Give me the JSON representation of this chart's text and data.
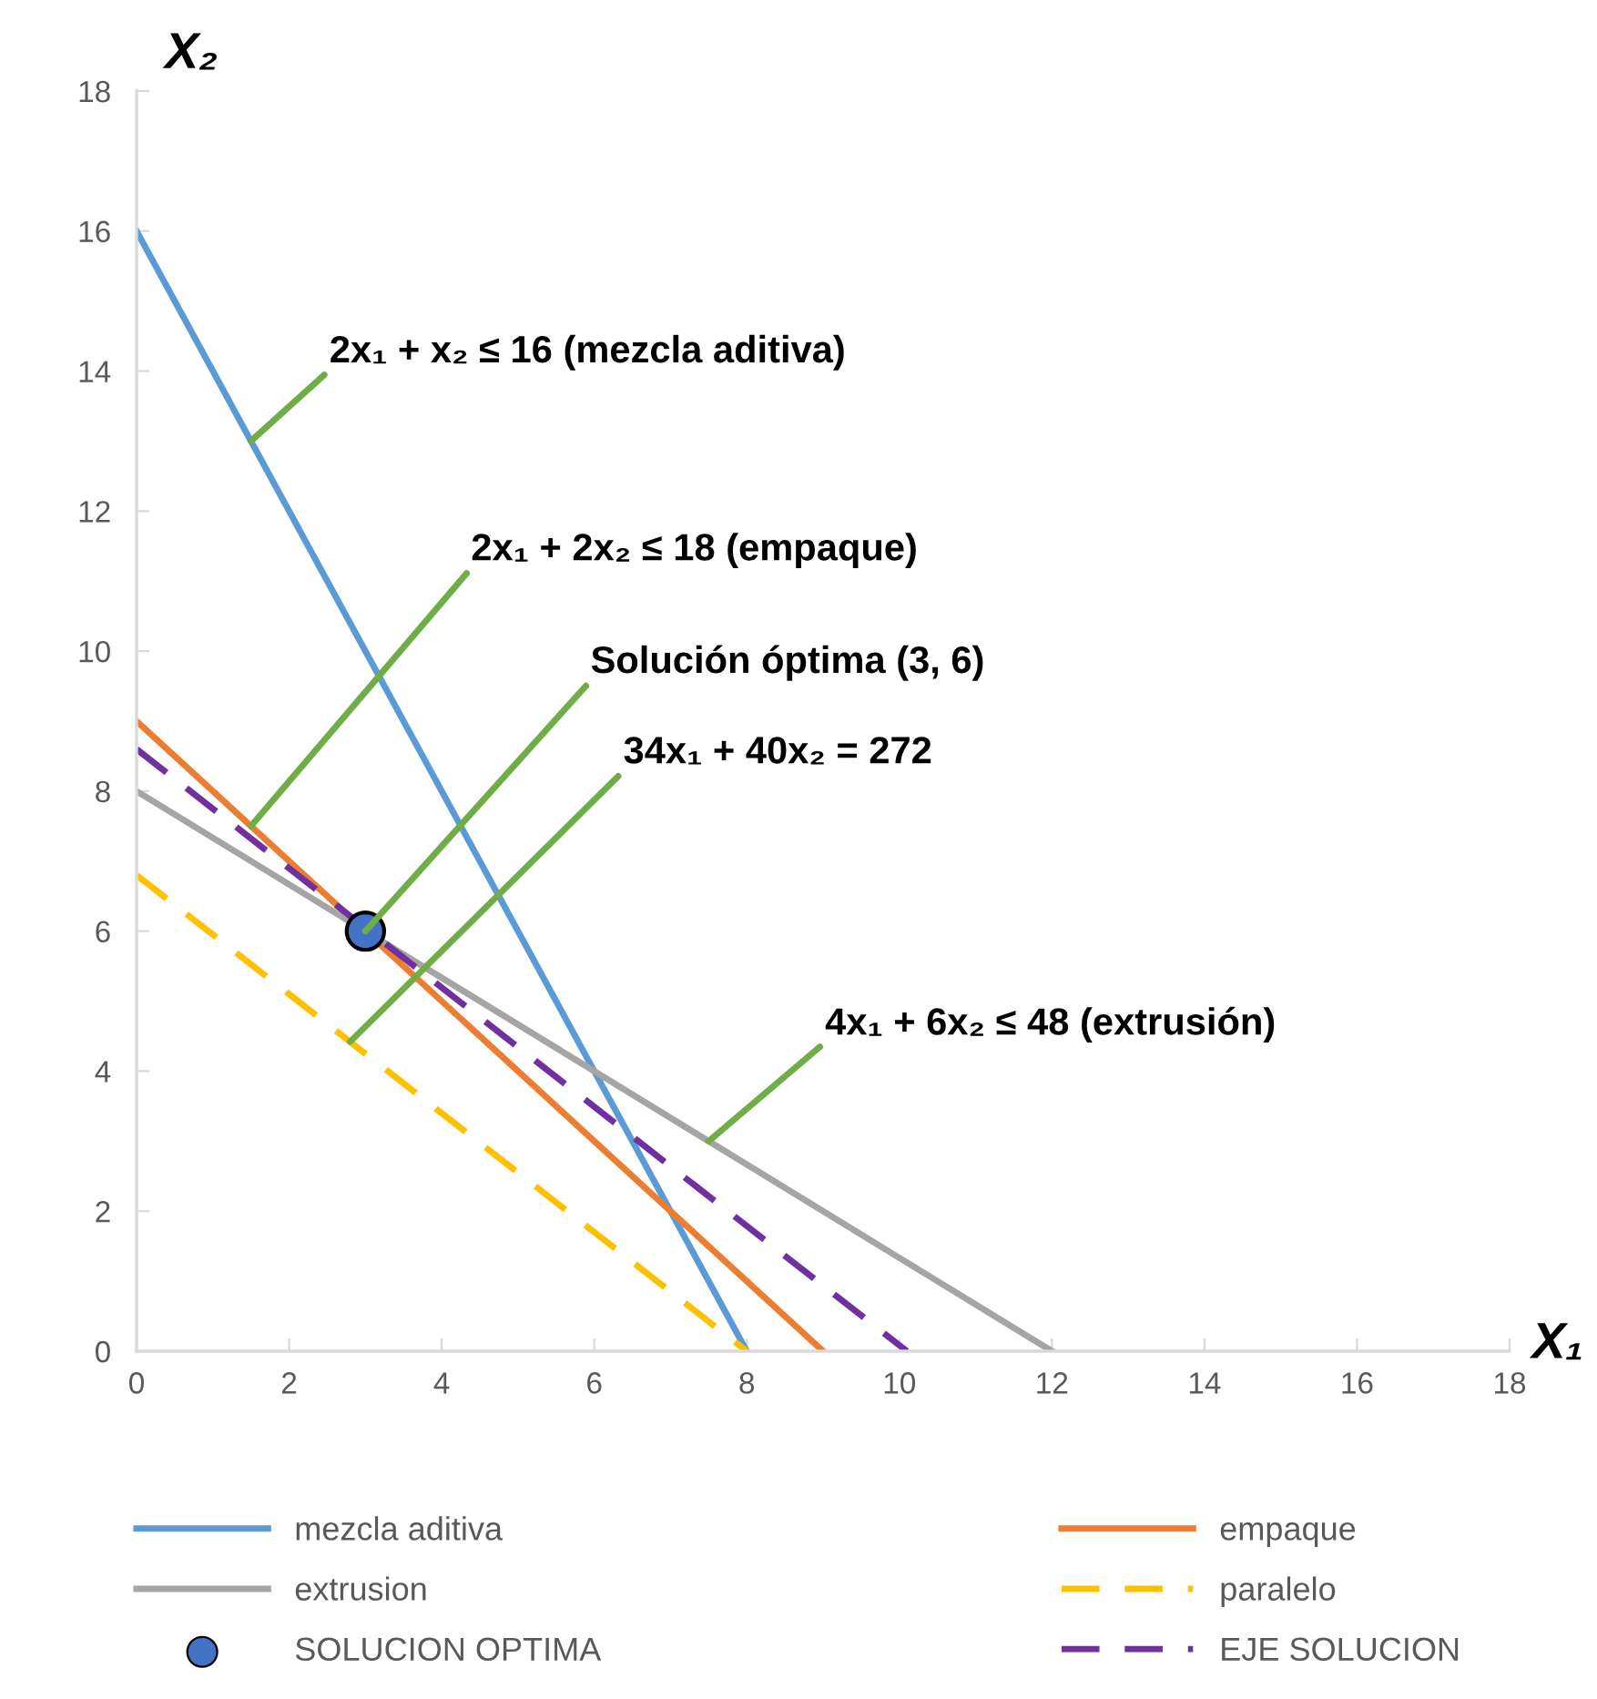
{
  "chart_data": {
    "type": "line",
    "xlabel": "X₁",
    "ylabel": "X₂",
    "xlim": [
      0,
      18
    ],
    "ylim": [
      0,
      18
    ],
    "xticks": [
      0,
      2,
      4,
      6,
      8,
      10,
      12,
      14,
      16,
      18
    ],
    "yticks": [
      0,
      2,
      4,
      6,
      8,
      10,
      12,
      14,
      16,
      18
    ],
    "grid": false,
    "legend": "bottom",
    "series": [
      {
        "name": "mezcla aditiva",
        "color": "#5b9bd5",
        "line_style": "solid",
        "marker": "none",
        "x": [
          0,
          8
        ],
        "values": [
          16,
          0
        ]
      },
      {
        "name": "empaque",
        "color": "#ed7d31",
        "line_style": "solid",
        "marker": "none",
        "x": [
          0,
          9
        ],
        "values": [
          9,
          0
        ]
      },
      {
        "name": "extrusion",
        "color": "#a5a5a5",
        "line_style": "solid",
        "marker": "none",
        "x": [
          0,
          12
        ],
        "values": [
          8,
          0
        ]
      },
      {
        "name": "paralelo",
        "color": "#ffc000",
        "line_style": "dashed",
        "marker": "none",
        "x": [
          0,
          8
        ],
        "values": [
          6.8,
          0
        ]
      },
      {
        "name": "SOLUCION OPTIMA",
        "type": "scatter",
        "color": "#4472c4",
        "marker": "circle",
        "x": [
          3
        ],
        "values": [
          6
        ]
      },
      {
        "name": "EJE SOLUCION",
        "color": "#7030a0",
        "line_style": "dashed",
        "marker": "none",
        "x": [
          0,
          10.1
        ],
        "values": [
          8.6,
          0
        ]
      }
    ],
    "annotations": [
      {
        "text": "2x₁ + x₂ ≤ 16 (mezcla aditiva)",
        "x": 1.5,
        "y": 13
      },
      {
        "text": "2x₁ + 2x₂ ≤ 18 (empaque)",
        "x": 1.5,
        "y": 7.5
      },
      {
        "text": "Solución óptima (3, 6)",
        "x": 3,
        "y": 6
      },
      {
        "text": "34x₁ + 40x₂ = 272",
        "x": 2.8,
        "y": 4.42
      },
      {
        "text": "4x₁ + 6x₂ ≤ 48 (extrusión)",
        "x": 7.5,
        "y": 3
      }
    ]
  }
}
